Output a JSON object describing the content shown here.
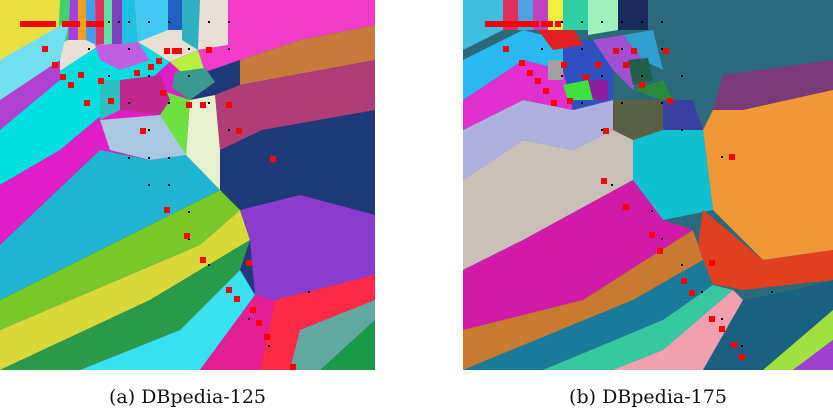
{
  "figure": {
    "panels": [
      {
        "id": "a",
        "caption": "(a) DBpedia-125"
      },
      {
        "id": "b",
        "caption": "(b) DBpedia-175"
      }
    ]
  },
  "legend_colors": {
    "centroid": "#ff0000",
    "point": "#000000"
  }
}
